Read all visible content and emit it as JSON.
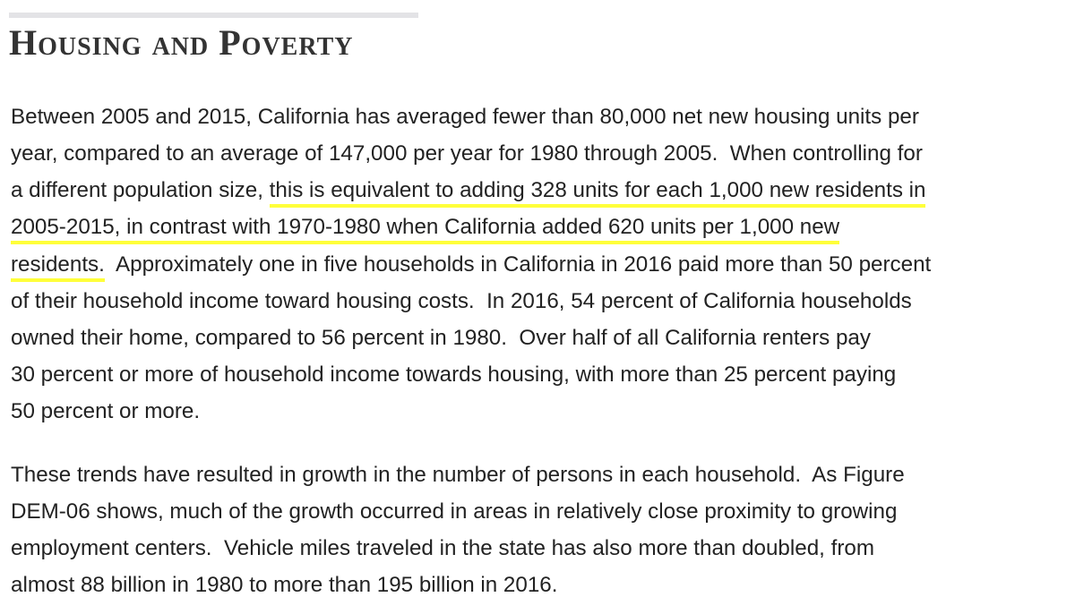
{
  "header": {
    "title": "Housing and Poverty"
  },
  "paragraphs": [
    {
      "lines": [
        [
          {
            "text": "Between 2005 and 2015, California has averaged fewer than 80,000 net new housing units per"
          }
        ],
        [
          {
            "text": "year, compared to an average of 147,000 per year for 1980 through 2005.  When controlling for"
          }
        ],
        [
          {
            "text": "a different population size, "
          },
          {
            "text": "this is equivalent to adding 328 units for each 1,000 new residents in",
            "highlight": true
          }
        ],
        [
          {
            "text": "2005-2015, in contrast with 1970-1980 when California added 620 units per 1,000 new",
            "highlight": true
          }
        ],
        [
          {
            "text": "residents.",
            "highlight": true
          },
          {
            "text": "  Approximately one in five households in California in 2016 paid more than 50 percent"
          }
        ],
        [
          {
            "text": "of their household income toward housing costs.  In 2016, 54 percent of California households"
          }
        ],
        [
          {
            "text": "owned their home, compared to 56 percent in 1980.  Over half of all California renters pay"
          }
        ],
        [
          {
            "text": "30 percent or more of household income towards housing, with more than 25 percent paying"
          }
        ],
        [
          {
            "text": "50 percent or more."
          }
        ]
      ]
    },
    {
      "lines": [
        [
          {
            "text": "These trends have resulted in growth in the number of persons in each household.  As Figure"
          }
        ],
        [
          {
            "text": "DEM-06 shows, much of the growth occurred in areas in relatively close proximity to growing"
          }
        ],
        [
          {
            "text": "employment centers.  Vehicle miles traveled in the state has also more than doubled, from"
          }
        ],
        [
          {
            "text": "almost 88 billion in 1980 to more than 195 billion in 2016."
          }
        ]
      ]
    }
  ]
}
